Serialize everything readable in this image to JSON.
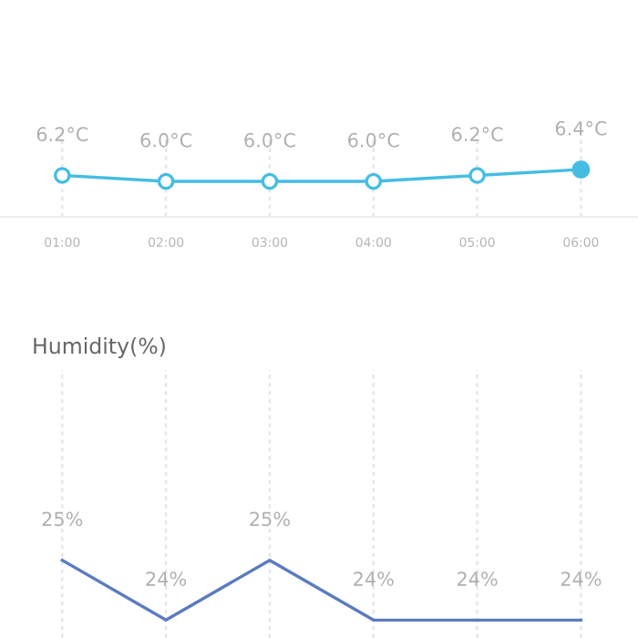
{
  "chart_data": [
    {
      "type": "line",
      "categories": [
        "01:00",
        "02:00",
        "03:00",
        "04:00",
        "05:00",
        "06:00"
      ],
      "series": [
        {
          "color": "#45bde3",
          "values": [
            6.2,
            6.0,
            6.0,
            6.0,
            6.2,
            6.4
          ],
          "value_labels": [
            "6.2°C",
            "6.0°C",
            "6.0°C",
            "6.0°C",
            "6.2°C",
            "6.4°C"
          ]
        }
      ],
      "marker": "circle",
      "grid": "x",
      "legend": false
    },
    {
      "type": "line",
      "title": "Humidity(%)",
      "categories": [
        null,
        null,
        null,
        null,
        null,
        null
      ],
      "series": [
        {
          "color": "#5b7bc0",
          "values": [
            25,
            24,
            25,
            24,
            24,
            24
          ],
          "value_labels": [
            "25%",
            "24%",
            "25%",
            "24%",
            "24%",
            "24%"
          ]
        }
      ],
      "marker": "none",
      "grid": "x",
      "legend": false
    }
  ]
}
